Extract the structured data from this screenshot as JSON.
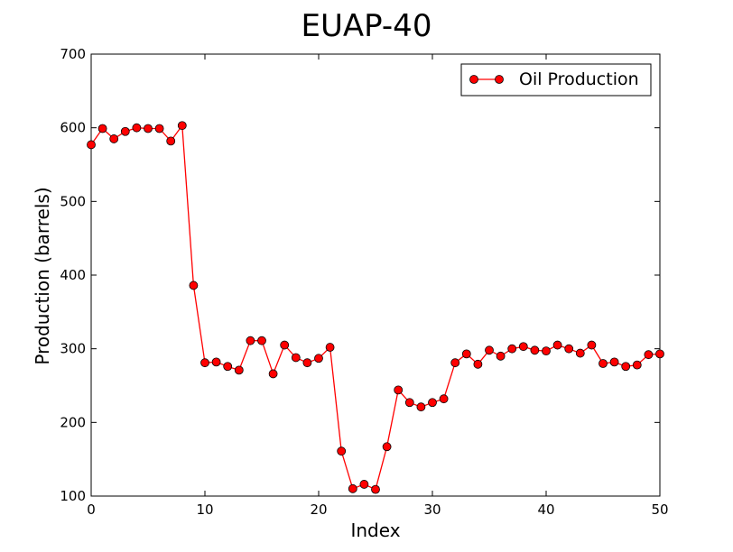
{
  "chart_data": {
    "type": "line",
    "title": "EUAP-40",
    "xlabel": "Index",
    "ylabel": "Production (barrels)",
    "xlim": [
      0,
      50
    ],
    "ylim": [
      100,
      700
    ],
    "xticks": [
      0,
      10,
      20,
      30,
      40,
      50
    ],
    "yticks": [
      100,
      200,
      300,
      400,
      500,
      600,
      700
    ],
    "grid": false,
    "legend_position": "top-right",
    "series": [
      {
        "name": "Oil Production",
        "color": "#ff0000",
        "marker": "circle",
        "x": [
          0,
          1,
          2,
          3,
          4,
          5,
          6,
          7,
          8,
          9,
          10,
          11,
          12,
          13,
          14,
          15,
          16,
          17,
          18,
          19,
          20,
          21,
          22,
          23,
          24,
          25,
          26,
          27,
          28,
          29,
          30,
          31,
          32,
          33,
          34,
          35,
          36,
          37,
          38,
          39,
          40,
          41,
          42,
          43,
          44,
          45,
          46,
          47,
          48,
          49,
          50
        ],
        "values": [
          577,
          599,
          585,
          595,
          600,
          599,
          599,
          582,
          603,
          386,
          281,
          282,
          276,
          271,
          311,
          311,
          266,
          305,
          288,
          281,
          287,
          302,
          161,
          110,
          116,
          109,
          167,
          244,
          227,
          221,
          227,
          232,
          281,
          293,
          279,
          298,
          290,
          300,
          303,
          298,
          297,
          305,
          300,
          294,
          305,
          280,
          282,
          276,
          278,
          292,
          293
        ]
      }
    ]
  }
}
